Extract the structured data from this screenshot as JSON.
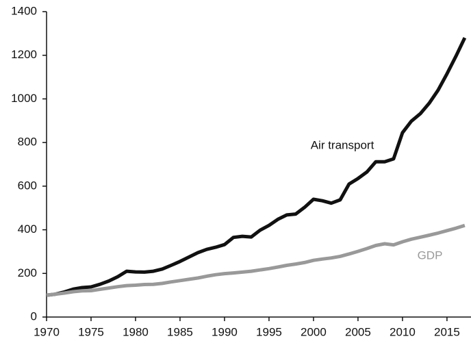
{
  "chart_data": {
    "type": "line",
    "x": [
      1970,
      1971,
      1972,
      1973,
      1974,
      1975,
      1976,
      1977,
      1978,
      1979,
      1980,
      1981,
      1982,
      1983,
      1984,
      1985,
      1986,
      1987,
      1988,
      1989,
      1990,
      1991,
      1992,
      1993,
      1994,
      1995,
      1996,
      1997,
      1998,
      1999,
      2000,
      2001,
      2002,
      2003,
      2004,
      2005,
      2006,
      2007,
      2008,
      2009,
      2010,
      2011,
      2012,
      2013,
      2014,
      2015,
      2016,
      2017
    ],
    "series": [
      {
        "name": "Air transport",
        "color": "#111111",
        "values": [
          100,
          105,
          115,
          128,
          135,
          138,
          150,
          165,
          185,
          210,
          207,
          206,
          210,
          220,
          237,
          255,
          275,
          295,
          310,
          320,
          332,
          365,
          370,
          367,
          398,
          420,
          448,
          468,
          472,
          503,
          540,
          533,
          522,
          537,
          610,
          635,
          665,
          712,
          712,
          725,
          845,
          898,
          932,
          980,
          1040,
          1115,
          1195,
          1280
        ]
      },
      {
        "name": "GDP",
        "color": "#999999",
        "values": [
          100,
          105,
          110,
          116,
          120,
          121,
          127,
          133,
          139,
          144,
          146,
          149,
          150,
          154,
          161,
          167,
          173,
          179,
          187,
          194,
          199,
          202,
          206,
          210,
          216,
          222,
          229,
          237,
          243,
          250,
          260,
          266,
          271,
          278,
          289,
          301,
          314,
          328,
          336,
          331,
          345,
          357,
          366,
          375,
          385,
          396,
          407,
          420
        ]
      }
    ],
    "xlim": [
      1970,
      2017.7
    ],
    "xticks": [
      1970,
      1975,
      1980,
      1985,
      1990,
      1995,
      2000,
      2005,
      2010,
      2015
    ],
    "ylim": [
      0,
      1400
    ],
    "yticks": [
      0,
      200,
      400,
      600,
      800,
      1000,
      1200,
      1400
    ]
  }
}
